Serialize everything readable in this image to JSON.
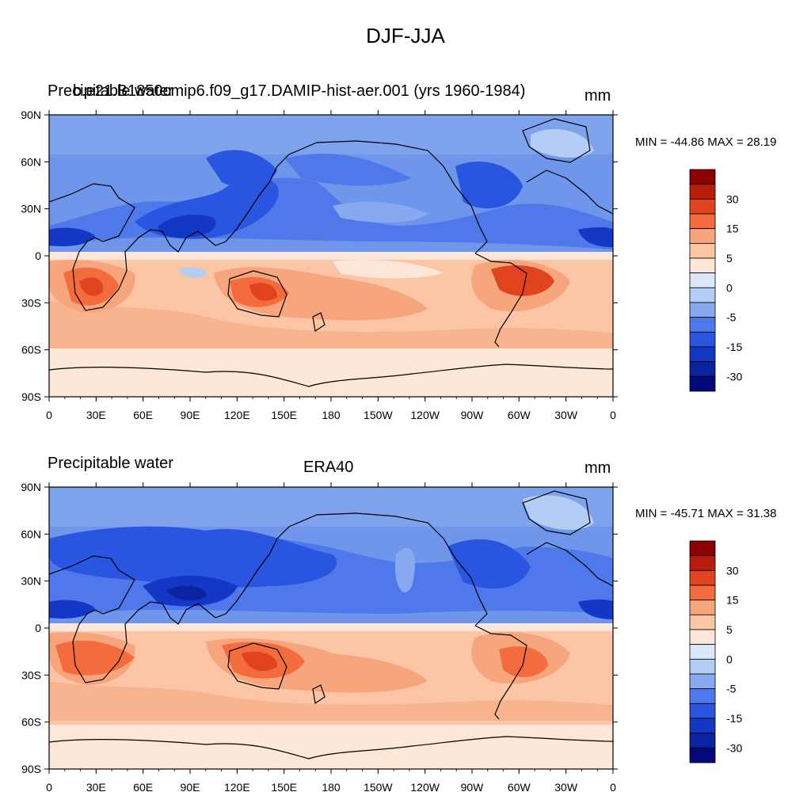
{
  "title": "DJF-JJA",
  "colors": {
    "ocean_blue": "#5f8be8",
    "deep_blue": "#1f4fd8",
    "darkest_blue": "#0a2aa8",
    "light_blue": "#a9c4f2",
    "pale_orange": "#fcdcc8",
    "mid_orange": "#f6a57c",
    "dark_orange": "#e0431e",
    "coast_line": "#000000"
  },
  "map_axes": {
    "lat_ticks": [
      "90N",
      "60N",
      "30N",
      "0",
      "30S",
      "60S",
      "90S"
    ],
    "lon_ticks": [
      "0",
      "30E",
      "60E",
      "90E",
      "120E",
      "150E",
      "180",
      "150W",
      "120W",
      "90W",
      "60W",
      "30W",
      "0"
    ]
  },
  "colorbar": {
    "labels": [
      "30",
      "15",
      "5",
      "0",
      "-5",
      "-15",
      "-30"
    ],
    "colors": [
      "#8b0000",
      "#b81d0b",
      "#e0431e",
      "#f46b3d",
      "#f6a57c",
      "#fbc5a6",
      "#fde7d8",
      "#dbe8fb",
      "#b4cdf5",
      "#86a9f0",
      "#4f79ea",
      "#2a55e0",
      "#1438c6",
      "#0a23a0",
      "#00087a"
    ]
  },
  "panels": [
    {
      "left_label": "Precipitable water",
      "center_label": "b.e21.B1850cmip6.f09_g17.DAMIP-hist-aer.001 (yrs 1960-1984)",
      "right_label": "mm",
      "min_text": "MIN = -44.86",
      "max_text": "MAX =  28.19"
    },
    {
      "left_label": "Precipitable water",
      "center_label": "ERA40",
      "right_label": "mm",
      "min_text": "MIN = -45.71",
      "max_text": "MAX =  31.38"
    }
  ]
}
